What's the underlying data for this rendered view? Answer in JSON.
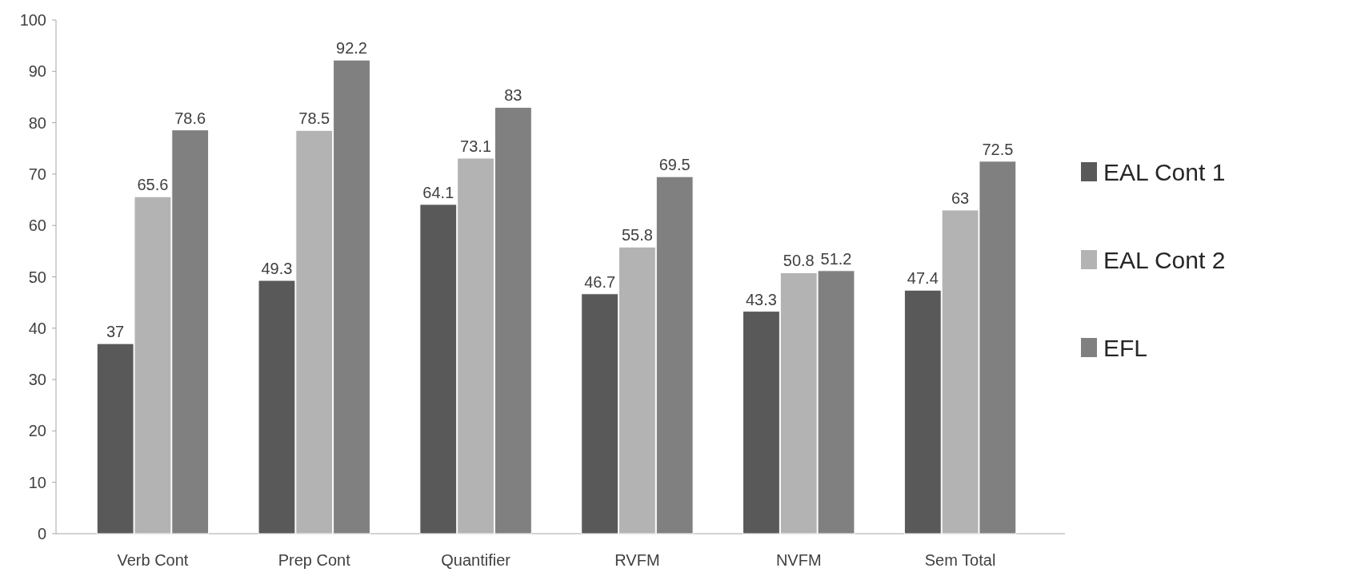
{
  "chart_data": {
    "type": "bar",
    "categories": [
      "Verb Cont",
      "Prep Cont",
      "Quantifier",
      "RVFM",
      "NVFM",
      "Sem Total"
    ],
    "series": [
      {
        "name": "EAL Cont 1",
        "color": "#595959",
        "values": [
          37,
          49.3,
          64.1,
          46.7,
          43.3,
          47.4
        ]
      },
      {
        "name": "EAL Cont 2",
        "color": "#b3b3b3",
        "values": [
          65.6,
          78.5,
          73.1,
          55.8,
          50.8,
          63
        ]
      },
      {
        "name": "EFL",
        "color": "#808080",
        "values": [
          78.6,
          92.2,
          83,
          69.5,
          51.2,
          72.5
        ]
      }
    ],
    "ylim": [
      0,
      100
    ],
    "yticks": [
      0,
      10,
      20,
      30,
      40,
      50,
      60,
      70,
      80,
      90,
      100
    ],
    "data_labels": true,
    "legend": "right",
    "grid": false
  }
}
